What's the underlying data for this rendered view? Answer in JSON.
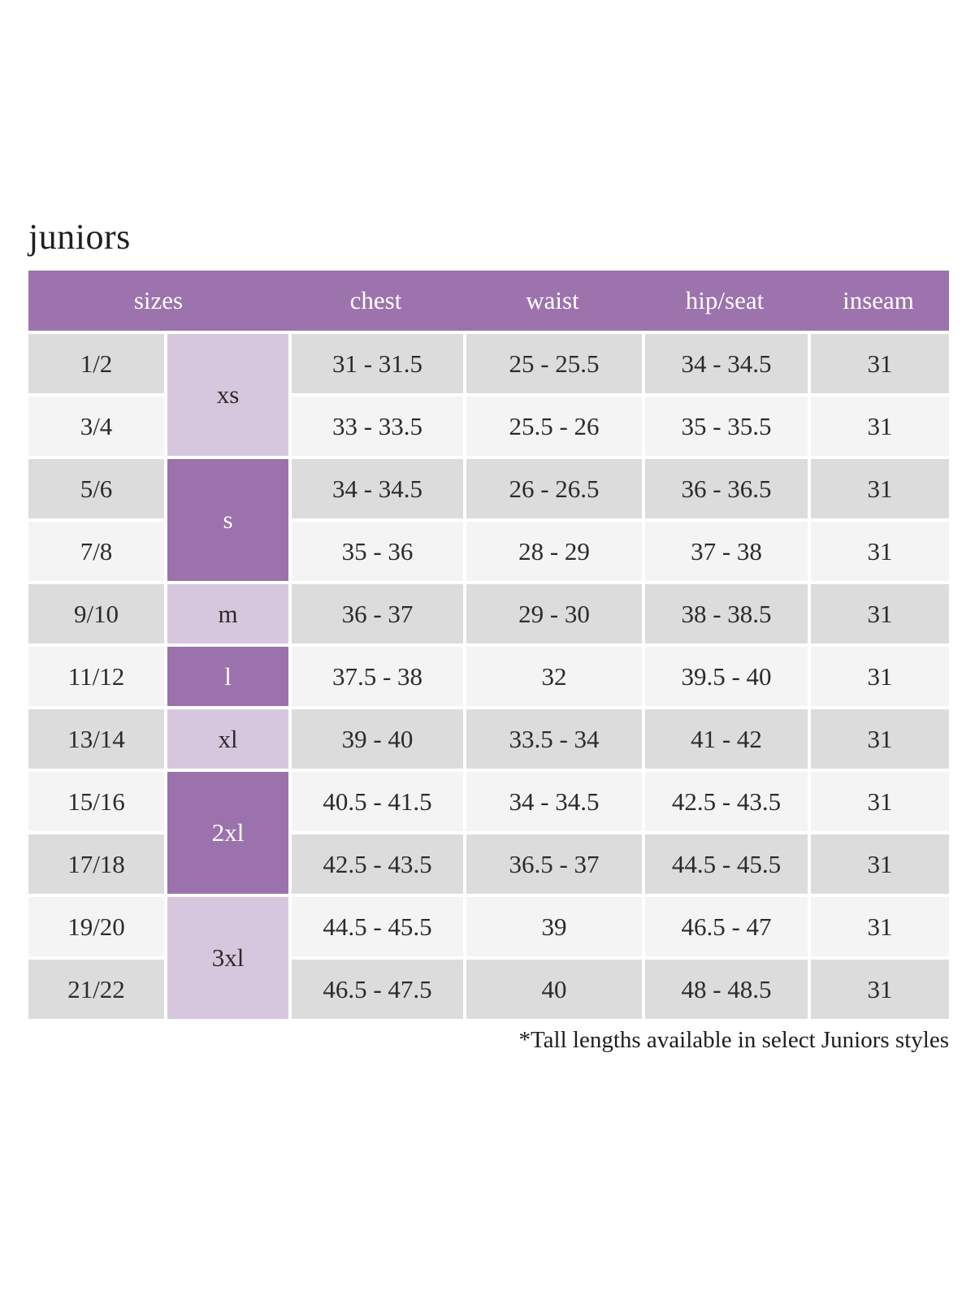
{
  "page": {
    "title": "juniors",
    "footnote": "*Tall lengths available in select Juniors styles"
  },
  "theme": {
    "header_purple": "#9d73ad",
    "dark_purple": "#9c72ac",
    "light_purple": "#d7c7de",
    "row_gray": "#dcdcdc",
    "row_light": "#f4f4f4",
    "header_text": "#ffffff",
    "body_text": "#2b2b2b",
    "page_bg": "#ffffff"
  },
  "chart_data": {
    "type": "table",
    "title": "juniors",
    "headers": [
      "sizes",
      "chest",
      "waist",
      "hip/seat",
      "inseam"
    ],
    "size_groups": [
      {
        "label": "xs",
        "rows": [
          "1/2",
          "3/4"
        ],
        "shade": "light"
      },
      {
        "label": "s",
        "rows": [
          "5/6",
          "7/8"
        ],
        "shade": "dark"
      },
      {
        "label": "m",
        "rows": [
          "9/10"
        ],
        "shade": "light"
      },
      {
        "label": "l",
        "rows": [
          "11/12"
        ],
        "shade": "dark"
      },
      {
        "label": "xl",
        "rows": [
          "13/14"
        ],
        "shade": "light"
      },
      {
        "label": "2xl",
        "rows": [
          "15/16",
          "17/18"
        ],
        "shade": "dark"
      },
      {
        "label": "3xl",
        "rows": [
          "19/20",
          "21/22"
        ],
        "shade": "light"
      }
    ],
    "rows": [
      {
        "size": "1/2",
        "chest": "31 - 31.5",
        "waist": "25 - 25.5",
        "hip_seat": "34 - 34.5",
        "inseam": "31"
      },
      {
        "size": "3/4",
        "chest": "33 - 33.5",
        "waist": "25.5 - 26",
        "hip_seat": "35 - 35.5",
        "inseam": "31"
      },
      {
        "size": "5/6",
        "chest": "34 - 34.5",
        "waist": "26 - 26.5",
        "hip_seat": "36 - 36.5",
        "inseam": "31"
      },
      {
        "size": "7/8",
        "chest": "35 - 36",
        "waist": "28 - 29",
        "hip_seat": "37 - 38",
        "inseam": "31"
      },
      {
        "size": "9/10",
        "chest": "36 - 37",
        "waist": "29 - 30",
        "hip_seat": "38 - 38.5",
        "inseam": "31"
      },
      {
        "size": "11/12",
        "chest": "37.5 - 38",
        "waist": "32",
        "hip_seat": "39.5 - 40",
        "inseam": "31"
      },
      {
        "size": "13/14",
        "chest": "39 - 40",
        "waist": "33.5 - 34",
        "hip_seat": "41 - 42",
        "inseam": "31"
      },
      {
        "size": "15/16",
        "chest": "40.5 - 41.5",
        "waist": "34 - 34.5",
        "hip_seat": "42.5 - 43.5",
        "inseam": "31"
      },
      {
        "size": "17/18",
        "chest": "42.5 - 43.5",
        "waist": "36.5 - 37",
        "hip_seat": "44.5 - 45.5",
        "inseam": "31"
      },
      {
        "size": "19/20",
        "chest": "44.5 - 45.5",
        "waist": "39",
        "hip_seat": "46.5 - 47",
        "inseam": "31"
      },
      {
        "size": "21/22",
        "chest": "46.5 - 47.5",
        "waist": "40",
        "hip_seat": "48 - 48.5",
        "inseam": "31"
      }
    ],
    "footnote": "*Tall lengths available in select Juniors styles"
  }
}
